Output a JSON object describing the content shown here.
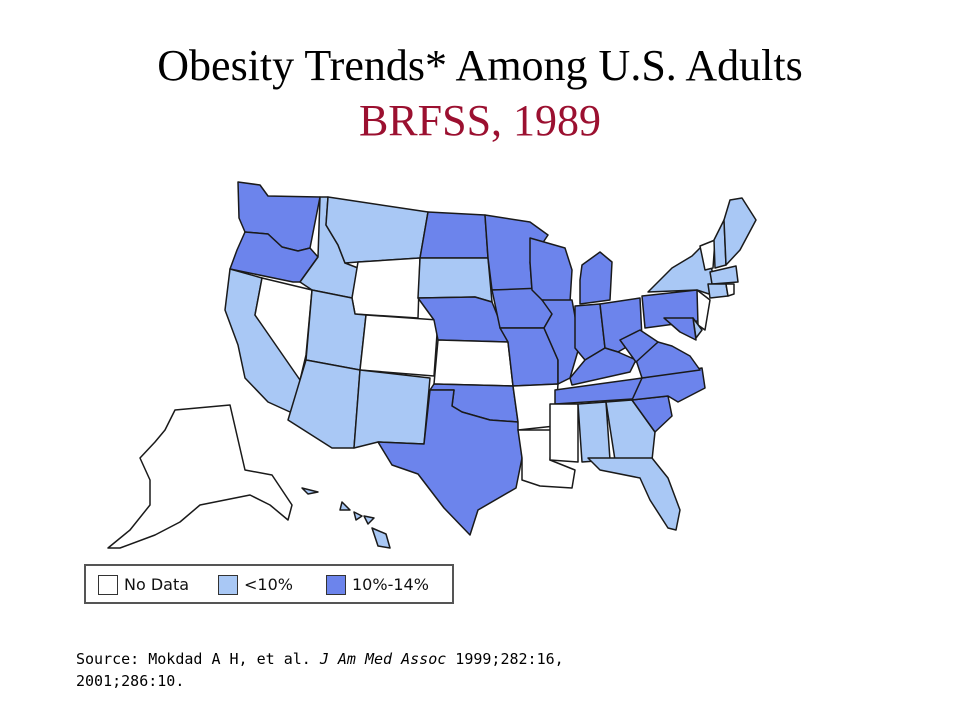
{
  "title": {
    "line1": "Obesity Trends* Among U.S. Adults",
    "line2": "BRFSS, 1989"
  },
  "colors": {
    "title_accent": "#9b1030",
    "no_data": "#ffffff",
    "lt10": "#a9c8f5",
    "b10_14": "#6c84ec",
    "border": "#1a1a1a"
  },
  "legend": [
    {
      "key": "nodata",
      "label": "No Data"
    },
    {
      "key": "lt10",
      "label": "<10%"
    },
    {
      "key": "b10_14",
      "label": "10%-14%"
    }
  ],
  "state_categories": {
    "WA": "b10_14",
    "OR": "b10_14",
    "CA": "lt10",
    "NV": "nodata",
    "ID": "lt10",
    "MT": "lt10",
    "WY": "nodata",
    "UT": "lt10",
    "AZ": "lt10",
    "CO": "nodata",
    "NM": "lt10",
    "ND": "b10_14",
    "SD": "lt10",
    "NE": "b10_14",
    "KS": "nodata",
    "OK": "b10_14",
    "TX": "b10_14",
    "MN": "b10_14",
    "IA": "b10_14",
    "MO": "b10_14",
    "AR": "nodata",
    "LA": "nodata",
    "WI": "b10_14",
    "IL": "b10_14",
    "MI": "b10_14",
    "IN": "b10_14",
    "OH": "b10_14",
    "KY": "b10_14",
    "TN": "b10_14",
    "MS": "nodata",
    "AL": "lt10",
    "GA": "lt10",
    "FL": "lt10",
    "SC": "b10_14",
    "NC": "b10_14",
    "VA": "b10_14",
    "WV": "b10_14",
    "PA": "b10_14",
    "NY": "lt10",
    "VT": "nodata",
    "NH": "lt10",
    "ME": "lt10",
    "MA": "lt10",
    "CT": "lt10",
    "RI": "nodata",
    "NJ": "nodata",
    "DE": "lt10",
    "MD": "b10_14",
    "AK": "nodata",
    "HI": "lt10"
  },
  "source": {
    "prefix": "Source: Mokdad A H, et al. ",
    "journal": "J Am Med Assoc",
    "suffix": " 1999;282:16,",
    "line2": "2001;286:10."
  }
}
